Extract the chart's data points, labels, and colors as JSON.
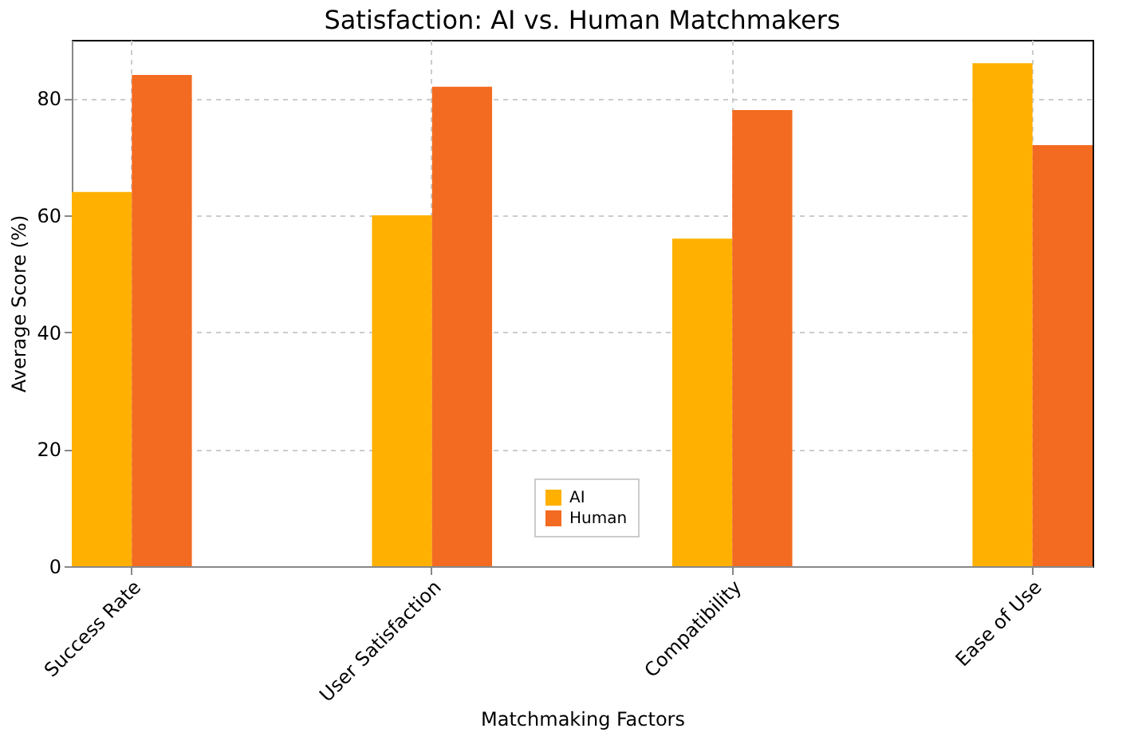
{
  "chart_data": {
    "type": "bar",
    "title": "Satisfaction: AI vs. Human Matchmakers",
    "xlabel": "Matchmaking Factors",
    "ylabel": "Average Score (%)",
    "categories": [
      "Success Rate",
      "User Satisfaction",
      "Compatibility",
      "Ease of Use"
    ],
    "series": [
      {
        "name": "AI",
        "color": "#ffb000",
        "values": [
          64,
          60,
          56,
          86
        ]
      },
      {
        "name": "Human",
        "color": "#f26b21",
        "values": [
          84,
          82,
          78,
          72
        ]
      }
    ],
    "ylim": [
      0,
      90
    ],
    "yticks": [
      0,
      20,
      40,
      60,
      80
    ],
    "grid": true,
    "legend": "bottom"
  }
}
